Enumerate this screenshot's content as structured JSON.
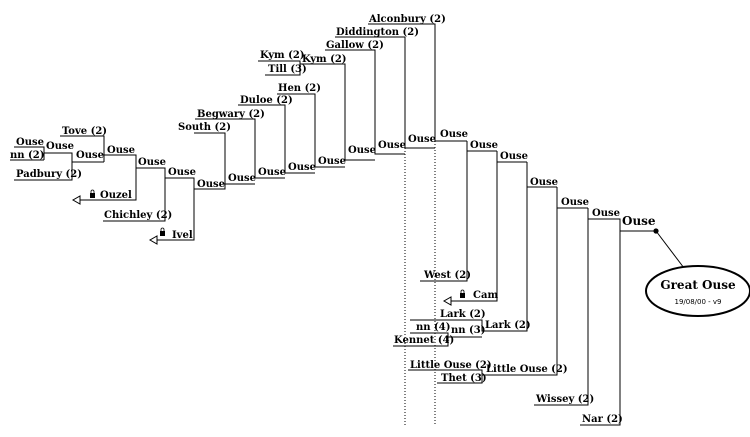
{
  "legend_box": {
    "title": "Great Ouse",
    "version": "19/08/00 - v9"
  },
  "root_label": "Ouse",
  "labels": {
    "ouse": "Ouse",
    "tove": "Tove (2)",
    "nn2": "nn (2)",
    "padbury": "Padbury (2)",
    "ouzel": "Ouzel",
    "chichley": "Chichley (2)",
    "ivel": "Ivel",
    "south": "South (2)",
    "begwary": "Begwary (2)",
    "duloe": "Duloe (2)",
    "hen": "Hen (2)",
    "kym_a": "Kym (2)",
    "till": "Till (3)",
    "kym_b": "Kym (2)",
    "gallow": "Gallow (2)",
    "diddington": "Diddington (2)",
    "alconbury": "Alconbury (2)",
    "west": "West (2)",
    "cam": "Cam",
    "lark_a": "Lark (2)",
    "nn4": "nn (4)",
    "nn3": "nn (3)",
    "lark_b": "Lark (2)",
    "kennet": "Kennet (4)",
    "little_ouse_a": "Little Ouse (2)",
    "thet": "Thet (3)",
    "little_ouse_b": "Little Ouse (2)",
    "wissey": "Wissey (2)",
    "nar": "Nar (2)"
  },
  "icons": {
    "lock": "lock-icon",
    "arrow": "open-arrow-icon",
    "node": "filled-dot-icon"
  }
}
